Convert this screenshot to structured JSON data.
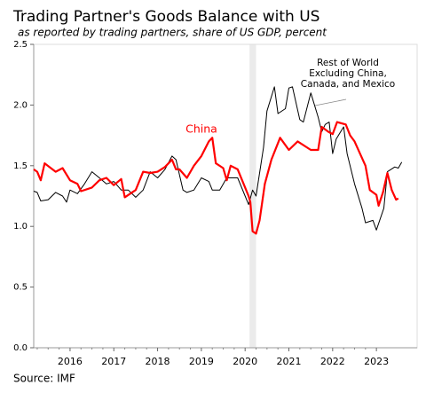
{
  "chart_data": {
    "type": "line",
    "title": "Trading Partner's Goods Balance with US",
    "subtitle": "as reported by trading partners, share of US GDP, percent",
    "source": "Source: IMF",
    "xlim": [
      2015.17,
      2023.93
    ],
    "xticks": [
      2016,
      2017,
      2018,
      2019,
      2020,
      2021,
      2022,
      2023
    ],
    "ylim": [
      0,
      2.5
    ],
    "yticks": [
      {
        "value": 0,
        "label": "0.0"
      },
      {
        "value": 0.5,
        "label": "0.5"
      },
      {
        "value": 1,
        "label": "1.0"
      },
      {
        "value": 1.5,
        "label": "1.5"
      },
      {
        "value": 2,
        "label": "2.0"
      },
      {
        "value": 2.5,
        "label": "2.5"
      }
    ],
    "grid": false,
    "shade": {
      "x": [
        2020.1,
        2020.25
      ],
      "color": "#ebebeb"
    },
    "series": [
      {
        "name": "Rest of World Excluding China, Canada, and Mexico",
        "color": "#000000",
        "width": 1,
        "x": [
          2015.17,
          2015.25,
          2015.33,
          2015.5,
          2015.67,
          2015.83,
          2015.92,
          2016.0,
          2016.17,
          2016.33,
          2016.5,
          2016.67,
          2016.83,
          2017.0,
          2017.17,
          2017.33,
          2017.5,
          2017.67,
          2017.83,
          2018.0,
          2018.17,
          2018.33,
          2018.42,
          2018.58,
          2018.67,
          2018.83,
          2019.0,
          2019.17,
          2019.25,
          2019.42,
          2019.58,
          2019.83,
          2020.0,
          2020.08,
          2020.17,
          2020.25,
          2020.42,
          2020.5,
          2020.67,
          2020.75,
          2020.92,
          2021.0,
          2021.08,
          2021.25,
          2021.33,
          2021.5,
          2021.67,
          2021.75,
          2021.83,
          2021.92,
          2022.0,
          2022.08,
          2022.25,
          2022.33,
          2022.5,
          2022.67,
          2022.75,
          2022.92,
          2023.0,
          2023.17,
          2023.25,
          2023.42,
          2023.5,
          2023.58
        ],
        "values": [
          1.29,
          1.28,
          1.21,
          1.22,
          1.28,
          1.25,
          1.2,
          1.3,
          1.27,
          1.35,
          1.45,
          1.4,
          1.35,
          1.37,
          1.3,
          1.3,
          1.24,
          1.3,
          1.45,
          1.4,
          1.47,
          1.58,
          1.55,
          1.3,
          1.28,
          1.3,
          1.4,
          1.37,
          1.3,
          1.3,
          1.4,
          1.4,
          1.25,
          1.18,
          1.3,
          1.25,
          1.65,
          1.95,
          2.15,
          1.93,
          1.97,
          2.14,
          2.15,
          1.88,
          1.86,
          2.1,
          1.9,
          1.78,
          1.84,
          1.86,
          1.6,
          1.72,
          1.82,
          1.6,
          1.35,
          1.15,
          1.03,
          1.05,
          0.97,
          1.15,
          1.45,
          1.49,
          1.48,
          1.53
        ]
      },
      {
        "name": "China",
        "color": "#ff0000",
        "width": 2.2,
        "x": [
          2015.17,
          2015.25,
          2015.33,
          2015.42,
          2015.67,
          2015.83,
          2016.0,
          2016.17,
          2016.25,
          2016.5,
          2016.67,
          2016.83,
          2017.0,
          2017.17,
          2017.25,
          2017.5,
          2017.67,
          2017.83,
          2018.0,
          2018.17,
          2018.33,
          2018.42,
          2018.5,
          2018.67,
          2018.83,
          2019.0,
          2019.17,
          2019.25,
          2019.33,
          2019.5,
          2019.58,
          2019.67,
          2019.83,
          2020.0,
          2020.08,
          2020.12,
          2020.17,
          2020.25,
          2020.33,
          2020.45,
          2020.6,
          2020.8,
          2021.0,
          2021.2,
          2021.5,
          2021.67,
          2021.75,
          2021.9,
          2022.0,
          2022.1,
          2022.3,
          2022.4,
          2022.5,
          2022.75,
          2022.85,
          2023.0,
          2023.05,
          2023.15,
          2023.25,
          2023.35,
          2023.45,
          2023.5
        ],
        "values": [
          1.47,
          1.45,
          1.38,
          1.52,
          1.45,
          1.48,
          1.38,
          1.35,
          1.29,
          1.32,
          1.38,
          1.4,
          1.34,
          1.39,
          1.24,
          1.3,
          1.45,
          1.44,
          1.45,
          1.49,
          1.55,
          1.47,
          1.47,
          1.4,
          1.5,
          1.58,
          1.7,
          1.73,
          1.52,
          1.48,
          1.38,
          1.5,
          1.47,
          1.32,
          1.25,
          1.2,
          0.96,
          0.94,
          1.05,
          1.35,
          1.55,
          1.73,
          1.63,
          1.7,
          1.63,
          1.63,
          1.82,
          1.78,
          1.76,
          1.86,
          1.84,
          1.75,
          1.7,
          1.5,
          1.3,
          1.26,
          1.17,
          1.28,
          1.44,
          1.3,
          1.22,
          1.23
        ]
      }
    ]
  }
}
